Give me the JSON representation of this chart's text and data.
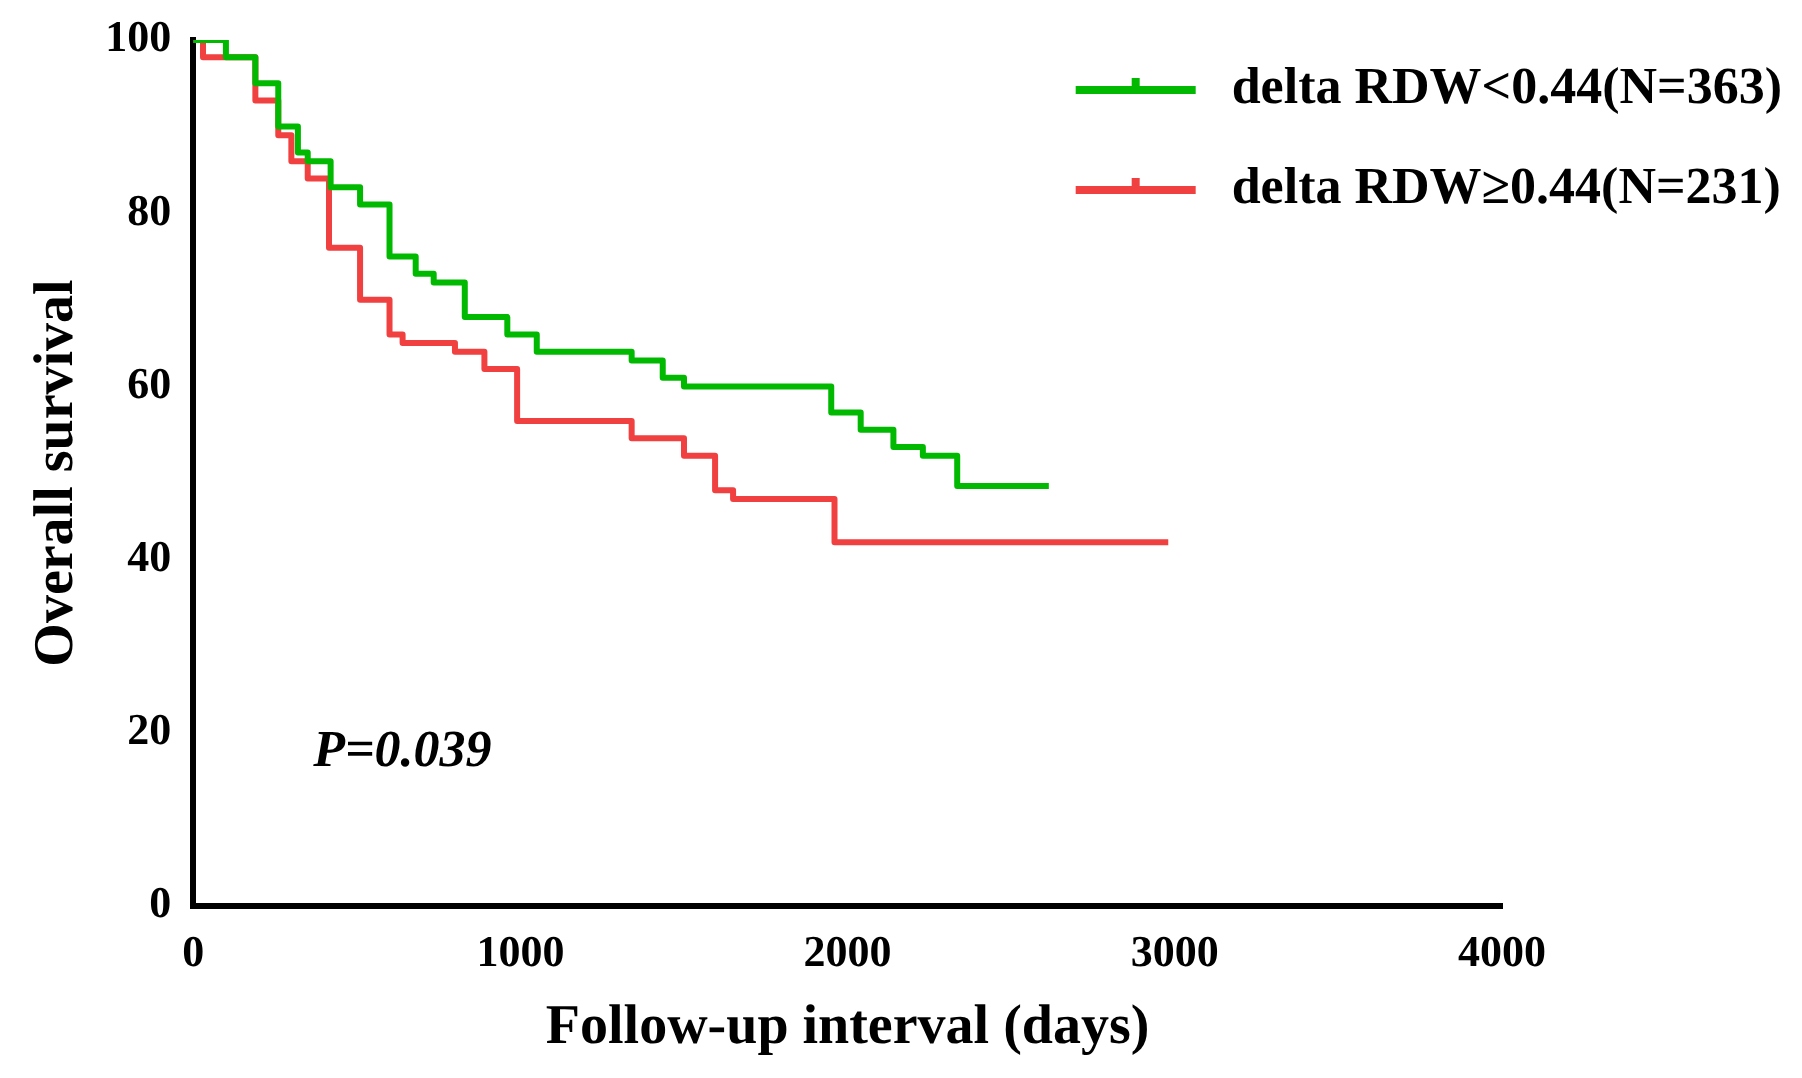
{
  "chart_data": {
    "type": "step",
    "xlabel": "Follow-up interval (days)",
    "ylabel": "Overall survival",
    "xlim": [
      0,
      4000
    ],
    "xticks": [
      0,
      1000,
      2000,
      3000,
      4000
    ],
    "ylim": [
      0,
      100
    ],
    "yticks": [
      0,
      20,
      40,
      60,
      80,
      100
    ],
    "grid": false,
    "legend": "top right",
    "marker": "none",
    "line_style": "solid",
    "annotations": [
      "P=0.039"
    ],
    "series": [
      {
        "name": "delta RDW<0.44(N=363)",
        "color": "#00b900",
        "x": [
          0,
          100,
          190,
          260,
          320,
          350,
          420,
          510,
          600,
          680,
          735,
          830,
          960,
          1050,
          1200,
          1340,
          1435,
          1500,
          1880,
          1950,
          2040,
          2140,
          2230,
          2335,
          2615
        ],
        "values": [
          100,
          98,
          95,
          90,
          87,
          86,
          83,
          81,
          75,
          73,
          72,
          68,
          66,
          64,
          64,
          63,
          61,
          60,
          60,
          57,
          55,
          53,
          52,
          48.5,
          48.5
        ]
      },
      {
        "name": "delta RDW≥0.44(N=231)",
        "color": "#f04040",
        "x": [
          0,
          30,
          190,
          260,
          300,
          350,
          415,
          510,
          600,
          640,
          800,
          890,
          990,
          1100,
          1340,
          1500,
          1595,
          1650,
          1960,
          2980
        ],
        "values": [
          100,
          98,
          93,
          89,
          86,
          84,
          76,
          70,
          66,
          65,
          64,
          62,
          56,
          56,
          54,
          52,
          48,
          47,
          42,
          42
        ]
      }
    ]
  }
}
